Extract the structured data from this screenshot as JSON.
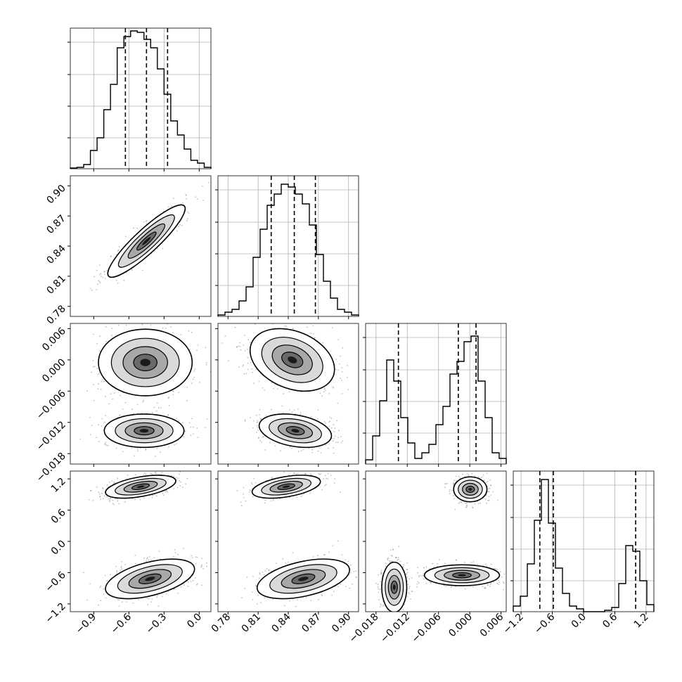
{
  "chart_data": {
    "type": "corner",
    "parameters": [
      {
        "range": [
          -1.1,
          0.1
        ],
        "ticks": [
          -0.9,
          -0.6,
          -0.3,
          0.0
        ],
        "tick_labels": [
          "−0.9",
          "−0.6",
          "−0.3",
          "0.0"
        ],
        "quantiles": [
          -0.63,
          -0.45,
          -0.27
        ],
        "histogram": [
          0.005,
          0.01,
          0.03,
          0.13,
          0.22,
          0.42,
          0.6,
          0.86,
          0.94,
          0.98,
          0.97,
          0.92,
          0.86,
          0.71,
          0.53,
          0.34,
          0.24,
          0.14,
          0.06,
          0.04,
          0.01
        ]
      },
      {
        "range": [
          0.77,
          0.91
        ],
        "ticks": [
          0.78,
          0.81,
          0.84,
          0.87,
          0.9
        ],
        "tick_labels": [
          "0.78",
          "0.81",
          "0.84",
          "0.87",
          "0.90"
        ],
        "quantiles": [
          0.823,
          0.846,
          0.867
        ],
        "histogram": [
          0.01,
          0.03,
          0.05,
          0.11,
          0.21,
          0.42,
          0.62,
          0.79,
          0.87,
          0.94,
          0.92,
          0.87,
          0.8,
          0.65,
          0.44,
          0.25,
          0.13,
          0.05,
          0.03,
          0.01
        ]
      },
      {
        "range": [
          -0.02,
          0.007
        ],
        "ticks": [
          -0.018,
          -0.012,
          -0.006,
          0.0,
          0.006
        ],
        "tick_labels": [
          "−0.018",
          "−0.012",
          "−0.006",
          "0.000",
          "0.006"
        ],
        "quantiles": [
          -0.0137,
          -0.0022,
          0.0012
        ],
        "histogram": [
          0.03,
          0.2,
          0.45,
          0.74,
          0.59,
          0.33,
          0.15,
          0.04,
          0.08,
          0.14,
          0.28,
          0.41,
          0.64,
          0.73,
          0.87,
          0.91,
          0.59,
          0.33,
          0.08,
          0.04
        ]
      },
      {
        "range": [
          -1.35,
          1.35
        ],
        "ticks": [
          -1.2,
          -0.6,
          0.0,
          0.6,
          1.2
        ],
        "tick_labels": [
          "−1.2",
          "−0.6",
          "0.0",
          "0.6",
          "1.2"
        ],
        "quantiles": [
          -0.84,
          -0.58,
          1.0
        ],
        "histogram": [
          0.04,
          0.11,
          0.34,
          0.65,
          0.94,
          0.63,
          0.31,
          0.13,
          0.04,
          0.02,
          0.0,
          0.0,
          0.0,
          0.01,
          0.03,
          0.2,
          0.47,
          0.43,
          0.22,
          0.05
        ]
      }
    ],
    "scatter_2d": [
      {
        "row": 1,
        "col": 0,
        "correlation": 0.9,
        "modes": [
          {
            "center": [
              -0.45,
              0.845
            ],
            "sd": [
              0.165,
              0.018
            ]
          }
        ]
      },
      {
        "row": 2,
        "col": 0,
        "correlation": 0.0,
        "modes": [
          {
            "center": [
              -0.46,
              -0.0005
            ],
            "sd": [
              0.2,
              0.0032
            ]
          },
          {
            "center": [
              -0.47,
              -0.0136
            ],
            "sd": [
              0.17,
              0.0016
            ]
          }
        ]
      },
      {
        "row": 2,
        "col": 1,
        "correlation": -0.3,
        "modes": [
          {
            "center": [
              0.844,
              0.0
            ],
            "sd": [
              0.021,
              0.003
            ]
          },
          {
            "center": [
              0.847,
              -0.0136
            ],
            "sd": [
              0.018,
              0.0016
            ]
          }
        ]
      },
      {
        "row": 3,
        "col": 0,
        "correlation": 0.5,
        "modes": [
          {
            "center": [
              -0.5,
              1.05
            ],
            "sd": [
              0.15,
              0.11
            ]
          },
          {
            "center": [
              -0.42,
              -0.72
            ],
            "sd": [
              0.19,
              0.19
            ]
          }
        ]
      },
      {
        "row": 3,
        "col": 1,
        "correlation": 0.45,
        "modes": [
          {
            "center": [
              0.838,
              1.05
            ],
            "sd": [
              0.017,
              0.11
            ]
          },
          {
            "center": [
              0.855,
              -0.72
            ],
            "sd": [
              0.023,
              0.19
            ]
          }
        ]
      },
      {
        "row": 3,
        "col": 2,
        "correlation": 0.0,
        "modes": [
          {
            "center": [
              -0.0145,
              -0.88
            ],
            "sd": [
              0.0012,
              0.24
            ]
          },
          {
            "center": [
              -0.0015,
              -0.65
            ],
            "sd": [
              0.0036,
              0.1
            ]
          },
          {
            "center": [
              0.0001,
              1.0
            ],
            "sd": [
              0.0016,
              0.12
            ]
          }
        ]
      }
    ],
    "quantile_line_style": "dashed",
    "grid": true,
    "title": "",
    "xlabel": "",
    "ylabel": "",
    "colors": {
      "line": "#000000",
      "grid": "#b0b0b0",
      "points": "#5a5a5a"
    }
  }
}
